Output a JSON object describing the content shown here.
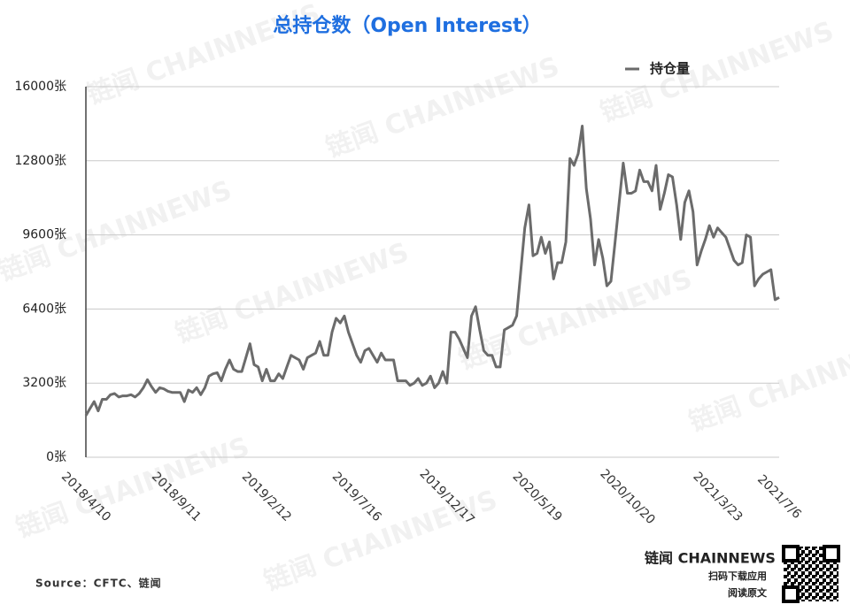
{
  "chart_data": {
    "type": "line",
    "title": "总持仓数（Open Interest）",
    "source": "Source：CFTC、链闻",
    "watermark": "链闻 CHAINNEWS",
    "brand": "链闻 CHAINNEWS",
    "qr_caption_1": "扫码下载应用",
    "qr_caption_2": "阅读原文",
    "ylim": [
      0,
      16000
    ],
    "yticks": [
      {
        "value": 0,
        "label": "0张"
      },
      {
        "value": 3200,
        "label": "3200张"
      },
      {
        "value": 6400,
        "label": "6400张"
      },
      {
        "value": 9600,
        "label": "9600张"
      },
      {
        "value": 12800,
        "label": "12800张"
      },
      {
        "value": 16000,
        "label": "16000张"
      }
    ],
    "grid": true,
    "legend": "top-right",
    "categories": [
      "2018/4/10",
      null,
      null,
      null,
      null,
      null,
      null,
      null,
      null,
      null,
      null,
      null,
      null,
      null,
      null,
      null,
      null,
      null,
      null,
      null,
      null,
      null,
      "2018/9/11",
      null,
      null,
      null,
      null,
      null,
      null,
      null,
      null,
      null,
      null,
      null,
      null,
      null,
      null,
      null,
      null,
      null,
      null,
      null,
      null,
      null,
      "2019/2/12",
      null,
      null,
      null,
      null,
      null,
      null,
      null,
      null,
      null,
      null,
      null,
      null,
      null,
      null,
      null,
      null,
      null,
      null,
      null,
      null,
      null,
      "2019/7/16",
      null,
      null,
      null,
      null,
      null,
      null,
      null,
      null,
      null,
      null,
      null,
      null,
      null,
      null,
      null,
      null,
      null,
      null,
      null,
      null,
      null,
      "2019/12/17",
      null,
      null,
      null,
      null,
      null,
      null,
      null,
      null,
      null,
      null,
      null,
      null,
      null,
      null,
      null,
      null,
      null,
      null,
      null,
      null,
      null,
      "2020/5/19",
      null,
      null,
      null,
      null,
      null,
      null,
      null,
      null,
      null,
      null,
      null,
      null,
      null,
      null,
      null,
      null,
      null,
      null,
      null,
      null,
      null,
      "2020/10/20",
      null,
      null,
      null,
      null,
      null,
      null,
      null,
      null,
      null,
      null,
      null,
      null,
      null,
      null,
      null,
      null,
      null,
      null,
      null,
      null,
      null,
      "2021/3/23",
      null,
      null,
      null,
      null,
      null,
      null,
      null,
      null,
      null,
      null,
      null,
      null,
      null,
      null,
      "2021/7/6"
    ],
    "series": [
      {
        "name": "持仓量",
        "color": "#6b6b6b",
        "values": [
          1800,
          2100,
          2400,
          2000,
          2500,
          2500,
          2700,
          2750,
          2600,
          2650,
          2650,
          2700,
          2600,
          2750,
          3000,
          3350,
          3050,
          2800,
          3000,
          2950,
          2850,
          2800,
          2800,
          2800,
          2400,
          2900,
          2800,
          3000,
          2700,
          3000,
          3500,
          3600,
          3650,
          3300,
          3800,
          4200,
          3800,
          3700,
          3700,
          4300,
          4900,
          4000,
          3900,
          3300,
          3800,
          3300,
          3300,
          3600,
          3400,
          3900,
          4400,
          4300,
          4200,
          3800,
          4300,
          4400,
          4500,
          5000,
          4400,
          4400,
          5400,
          6000,
          5800,
          6100,
          5400,
          4900,
          4400,
          4100,
          4600,
          4700,
          4400,
          4100,
          4500,
          4200,
          4200,
          4200,
          3300,
          3300,
          3300,
          3100,
          3200,
          3400,
          3100,
          3200,
          3500,
          3000,
          3200,
          3700,
          3200,
          5400,
          5400,
          5100,
          4700,
          4300,
          6100,
          6500,
          5500,
          4600,
          4400,
          4400,
          3900,
          3900,
          5500,
          5600,
          5700,
          6100,
          8000,
          9900,
          10900,
          8700,
          8800,
          9500,
          8800,
          9300,
          7700,
          8400,
          8400,
          9300,
          12900,
          12600,
          13100,
          14300,
          11600,
          10300,
          8300,
          9400,
          8600,
          7400,
          7600,
          9300,
          11000,
          12700,
          11400,
          11400,
          11500,
          12400,
          11900,
          11900,
          11500,
          12600,
          10700,
          11400,
          12200,
          12100,
          10900,
          9400,
          11000,
          11500,
          10600,
          8300,
          8900,
          9400,
          10000,
          9500,
          9900,
          9700,
          9500,
          9000,
          8500,
          8300,
          8400,
          9600,
          9500,
          7400,
          7700,
          7900,
          8000,
          8100,
          6800,
          6900
        ]
      }
    ]
  }
}
